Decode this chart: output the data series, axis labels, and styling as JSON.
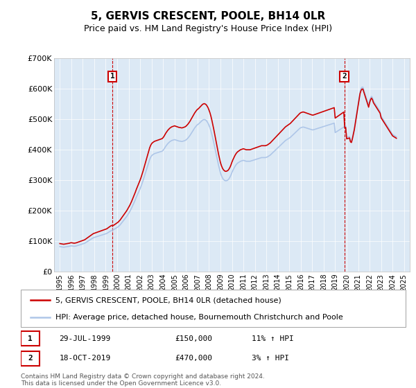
{
  "title": "5, GERVIS CRESCENT, POOLE, BH14 0LR",
  "subtitle": "Price paid vs. HM Land Registry's House Price Index (HPI)",
  "legend_line1": "5, GERVIS CRESCENT, POOLE, BH14 0LR (detached house)",
  "legend_line2": "HPI: Average price, detached house, Bournemouth Christchurch and Poole",
  "footer": "Contains HM Land Registry data © Crown copyright and database right 2024.\nThis data is licensed under the Open Government Licence v3.0.",
  "annotation1": {
    "label": "1",
    "date": "29-JUL-1999",
    "price": 150000,
    "hpi_change": "11% ↑ HPI",
    "x_year": 1999.57
  },
  "annotation2": {
    "label": "2",
    "date": "18-OCT-2019",
    "price": 470000,
    "hpi_change": "3% ↑ HPI",
    "x_year": 2019.79
  },
  "hpi_color": "#aec6e8",
  "price_color": "#cc0000",
  "plot_bg_color": "#dce9f5",
  "ylim": [
    0,
    700000
  ],
  "yticks": [
    0,
    100000,
    200000,
    300000,
    400000,
    500000,
    600000,
    700000
  ],
  "ytick_labels": [
    "£0",
    "£100K",
    "£200K",
    "£300K",
    "£400K",
    "£500K",
    "£600K",
    "£700K"
  ],
  "xlim_start": 1994.5,
  "xlim_end": 2025.5,
  "sale1_year": 1995.0,
  "sale1_value": 92000,
  "sale2_year": 1999.57,
  "sale2_value": 150000,
  "sale3_year": 2019.79,
  "sale3_value": 470000
}
